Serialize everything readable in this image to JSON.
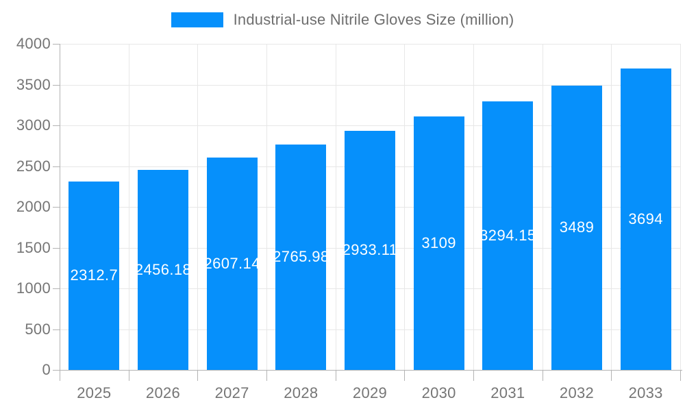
{
  "chart_data": {
    "type": "bar",
    "title": "",
    "legend_label": "Industrial-use Nitrile Gloves Size (million)",
    "legend_position": "top",
    "categories": [
      "2025",
      "2026",
      "2027",
      "2028",
      "2029",
      "2030",
      "2031",
      "2032",
      "2033"
    ],
    "values": [
      2312.7,
      2456.18,
      2607.14,
      2765.98,
      2933.11,
      3109,
      3294.15,
      3489,
      3694
    ],
    "value_labels": [
      "2312.7",
      "2456.18",
      "2607.14",
      "2765.98",
      "2933.11",
      "3109",
      "3294.15",
      "3489",
      "3694"
    ],
    "xlabel": "",
    "ylabel": "",
    "ylim": [
      0,
      4000
    ],
    "yticks": [
      0,
      500,
      1000,
      1500,
      2000,
      2500,
      3000,
      3500,
      4000
    ],
    "grid": true,
    "colors": {
      "bar": "#0690fb",
      "grid": "#e7e7e7",
      "axis": "#b3b3b3",
      "tick_label": "#757575",
      "legend_text": "#6e6e6e",
      "data_label": "#ffffff",
      "background": "#ffffff"
    }
  }
}
